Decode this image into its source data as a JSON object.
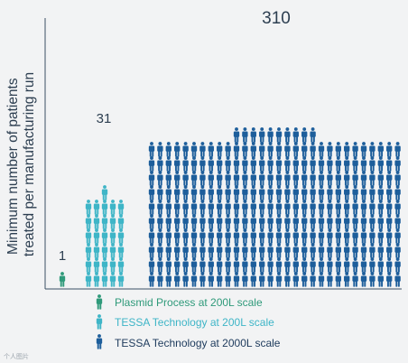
{
  "chart_data": {
    "type": "bar",
    "ylabel": "Minimum number of patients treated per manufacturing run",
    "ylabel_lines": [
      "Minimum number of patients",
      "treated per manufacturing run"
    ],
    "categories": [
      "Plasmid Process at 200L scale",
      "TESSA Technology at 200L scale",
      "TESSA Technology at 2000L scale"
    ],
    "values": [
      1,
      31,
      310
    ],
    "data_labels": [
      "1",
      "31",
      "310"
    ],
    "colors": [
      "#2f9a7a",
      "#3eb5c7",
      "#1d5e9b"
    ],
    "marker": "person-icon",
    "legend_position": "bottom",
    "grid": false
  },
  "legend": {
    "items": [
      {
        "label": "Plasmid Process at 200L scale",
        "color": "#2f9a7a",
        "text_color": "#2f9a7a"
      },
      {
        "label": "TESSA Technology at 200L scale",
        "color": "#3eb5c7",
        "text_color": "#3eb5c7"
      },
      {
        "label": "TESSA Technology at 2000L scale",
        "color": "#1d5e9b",
        "text_color": "#1d3a5c"
      }
    ]
  },
  "watermark": "个人图片"
}
